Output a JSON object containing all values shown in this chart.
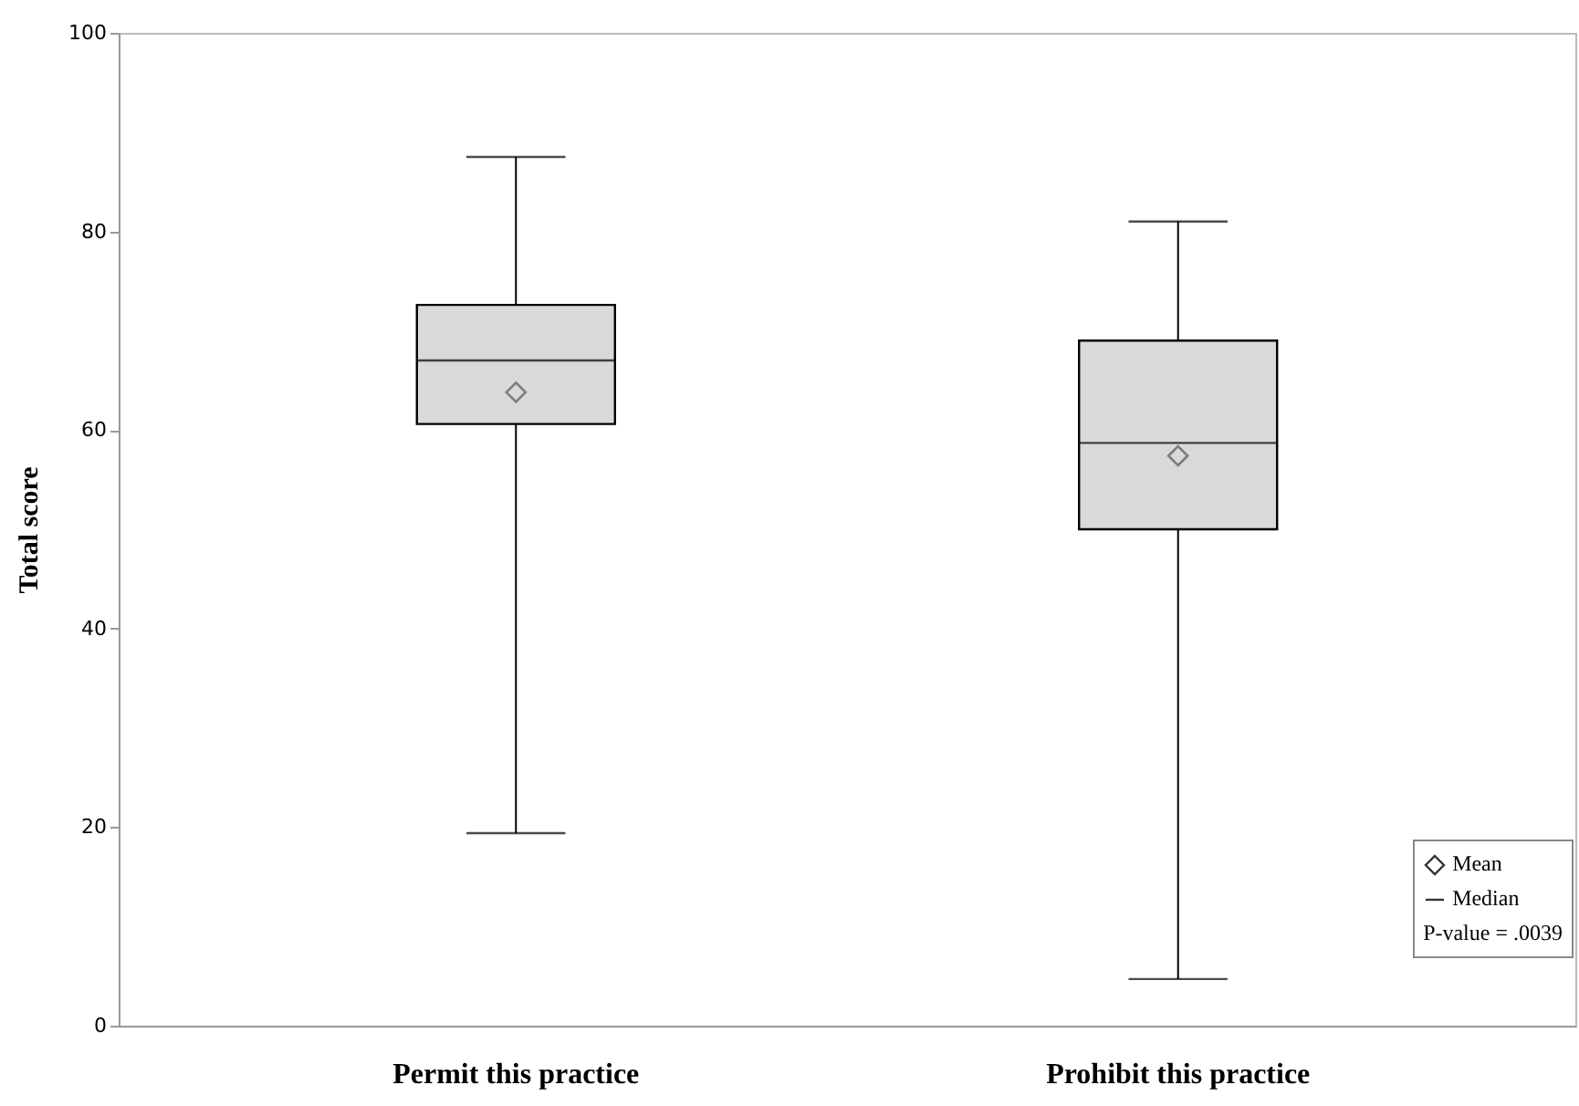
{
  "chart_data": {
    "type": "box",
    "ylabel": "Total score",
    "categories": [
      "Permit this practice",
      "Prohibit this practice"
    ],
    "boxes": [
      {
        "low": 19.4,
        "q1": 60.6,
        "median": 67,
        "q3": 72.6,
        "high": 87.5,
        "mean": 63.8
      },
      {
        "low": 4.7,
        "q1": 50,
        "median": 58.7,
        "q3": 69,
        "high": 81,
        "mean": 57.4
      }
    ],
    "color": "#d9d9d9",
    "ylim": [
      0,
      100
    ],
    "yticks": [
      0,
      20,
      40,
      60,
      80,
      100
    ],
    "grid": false,
    "marker": "diamond",
    "annotations": [
      "Mean",
      "Median",
      "P-value = .0039"
    ]
  }
}
